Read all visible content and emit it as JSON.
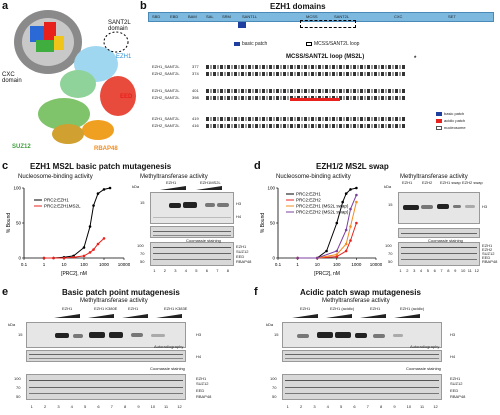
{
  "panels": {
    "a": {
      "label": "a",
      "labels": {
        "sant2l": "SANT2L domain",
        "cxc": "CXC domain",
        "ezh1": "EZH1",
        "suz12": "SUZ12",
        "rbap48": "RBAP48",
        "eed": "EED"
      }
    },
    "b": {
      "label": "b",
      "title": "EZH1 domains",
      "domains": [
        "SBD",
        "EBD",
        "BAM",
        "SAL",
        "SRM",
        "SANT1L",
        "MCSS",
        "SANT2L",
        "CXC",
        "SET"
      ],
      "legend_basic": "basic patch",
      "legend_loop": "MCSS/SANT2L loop",
      "loop_title": "MCSS/SANT2L loop (MS2L)",
      "seq_rows": [
        "EZH1_SANT2L",
        "EZH2_SANT2L",
        "EZH1_SANT2L",
        "EZH2_SANT2L",
        "EZH1_SANT2L",
        "EZH2_SANT2L"
      ],
      "seq_nums": [
        "377",
        "374",
        "401",
        "398",
        "419",
        "416"
      ],
      "asterisk": "*",
      "legend2": [
        "basic patch",
        "acidic patch",
        "nucleosome"
      ]
    },
    "c": {
      "label": "c",
      "title": "EZH1 MS2L basic patch mutagenesis",
      "left_sub": "Nucleosome-binding activity",
      "right_sub": "Methyltransferase activity",
      "ylabel": "% Bound",
      "xlabel": "[PRC2], nM",
      "legend": [
        "PRC2:EZH1",
        "PRC2:EZH1MS2L"
      ],
      "gel_kda": "kDa",
      "gel_markers": [
        "15",
        "100",
        "70",
        "50"
      ],
      "gel_lanes": [
        "1",
        "2",
        "3",
        "4",
        "5",
        "6",
        "7",
        "8"
      ],
      "col_headers": [
        "EZH1",
        "EZH1MS2L"
      ],
      "gel_right": [
        "H3",
        "H4",
        "Coomassie staining",
        "EZH1",
        "SUZ12",
        "EED",
        "RBAP48"
      ]
    },
    "d": {
      "label": "d",
      "title": "EZH1/2 MS2L swap",
      "left_sub": "Nucleosome-binding activity",
      "right_sub": "Methyltransferase activity",
      "ylabel": "% Bound",
      "xlabel": "[PRC2], nM",
      "legend": [
        "PRC2:EZH1",
        "PRC2:EZH2",
        "PRC2:EZH1 (MS2L swap)",
        "PRC2:EZH2 (MS2L swap)"
      ],
      "gel_kda": "kDa",
      "gel_markers": [
        "15",
        "100",
        "70",
        "50"
      ],
      "gel_lanes": [
        "1",
        "2",
        "3",
        "4",
        "5",
        "6",
        "7",
        "8",
        "9",
        "10",
        "11",
        "12"
      ],
      "col_headers": [
        "EZH1",
        "EZH2",
        "EZH1 swap",
        "EZH2 swap"
      ],
      "gel_right": [
        "H3",
        "Coomassie staining",
        "EZH1",
        "EZH2",
        "SUZ12",
        "EED",
        "RBAP48"
      ]
    },
    "e": {
      "label": "e",
      "title": "Basic patch point mutagenesis",
      "sub": "Methyltransferase activity",
      "col_headers": [
        "EZH1",
        "EZH1 K380E",
        "EZH1",
        "EZH1 K383E"
      ],
      "gel_kda": "kDa",
      "gel_markers": [
        "15",
        "100",
        "70",
        "50"
      ],
      "lanes": [
        "1",
        "2",
        "3",
        "4",
        "5",
        "6",
        "7",
        "8",
        "9",
        "10",
        "11",
        "12"
      ],
      "gel_right": [
        "H3",
        "Autoradiography",
        "H4",
        "Coomassie staining",
        "EZH1",
        "SUZ12",
        "EED",
        "RBAP48"
      ]
    },
    "f": {
      "label": "f",
      "title": "Acidic patch swap mutagenesis",
      "sub": "Methyltransferase activity",
      "col_headers": [
        "EZH1",
        "EZH1 (acidic)",
        "EZH1",
        "EZH1 (acidic)"
      ],
      "gel_kda": "kDa",
      "gel_markers": [
        "15",
        "100",
        "70",
        "50"
      ],
      "lanes": [
        "1",
        "2",
        "3",
        "4",
        "5",
        "6",
        "7",
        "8",
        "9",
        "10",
        "11",
        "12"
      ],
      "gel_right": [
        "H3",
        "Autoradiography",
        "H4",
        "Coomassie staining",
        "EZH1",
        "SUZ12",
        "EED",
        "RBAP48"
      ]
    }
  },
  "chart_data": [
    {
      "type": "line",
      "panel": "c",
      "xlabel": "[PRC2], nM",
      "ylabel": "% Bound",
      "xscale": "log",
      "xlim": [
        0.1,
        10000
      ],
      "ylim": [
        0,
        100
      ],
      "xticks": [
        "0.1",
        "1",
        "10",
        "100",
        "1000",
        "10000"
      ],
      "yticks": [
        "0",
        "50",
        "100"
      ],
      "series": [
        {
          "name": "PRC2:EZH1",
          "color": "#000000",
          "x": [
            1,
            3,
            10,
            30,
            100,
            200,
            300,
            500,
            1000,
            2000
          ],
          "y": [
            0,
            0,
            1,
            3,
            15,
            45,
            75,
            92,
            98,
            100
          ]
        },
        {
          "name": "PRC2:EZH1MS2L",
          "color": "#e8211c",
          "x": [
            1,
            3,
            10,
            30,
            100,
            200,
            300,
            500,
            1000
          ],
          "y": [
            0,
            0,
            0,
            1,
            3,
            8,
            12,
            20,
            28
          ]
        }
      ]
    },
    {
      "type": "line",
      "panel": "d",
      "xlabel": "[PRC2], nM",
      "ylabel": "% Bound",
      "xscale": "log",
      "xlim": [
        0.1,
        10000
      ],
      "ylim": [
        0,
        100
      ],
      "xticks": [
        "0.1",
        "1",
        "10",
        "100",
        "1000",
        "10000"
      ],
      "yticks": [
        "0",
        "50",
        "100"
      ],
      "series": [
        {
          "name": "PRC2:EZH1",
          "color": "#000000",
          "x": [
            1,
            10,
            30,
            100,
            200,
            300,
            500,
            1000
          ],
          "y": [
            0,
            0,
            10,
            50,
            80,
            92,
            98,
            100
          ]
        },
        {
          "name": "PRC2:EZH2",
          "color": "#e8211c",
          "x": [
            1,
            10,
            100,
            300,
            500,
            1000
          ],
          "y": [
            0,
            0,
            2,
            10,
            25,
            50
          ]
        },
        {
          "name": "PRC2:EZH1 (MS2L swap)",
          "color": "#f28c1e",
          "x": [
            1,
            10,
            100,
            300,
            500,
            1000
          ],
          "y": [
            0,
            0,
            5,
            20,
            45,
            80
          ]
        },
        {
          "name": "PRC2:EZH2 (MS2L swap)",
          "color": "#7b3fa0",
          "x": [
            1,
            10,
            100,
            300,
            500,
            1000
          ],
          "y": [
            0,
            0,
            10,
            40,
            70,
            90
          ]
        }
      ]
    }
  ],
  "colors": {
    "domain_fill": "#7db8de",
    "basic_patch": "#1f3fa0",
    "red": "#e8211c",
    "orange": "#f28c1e",
    "purple": "#7b3fa0"
  }
}
